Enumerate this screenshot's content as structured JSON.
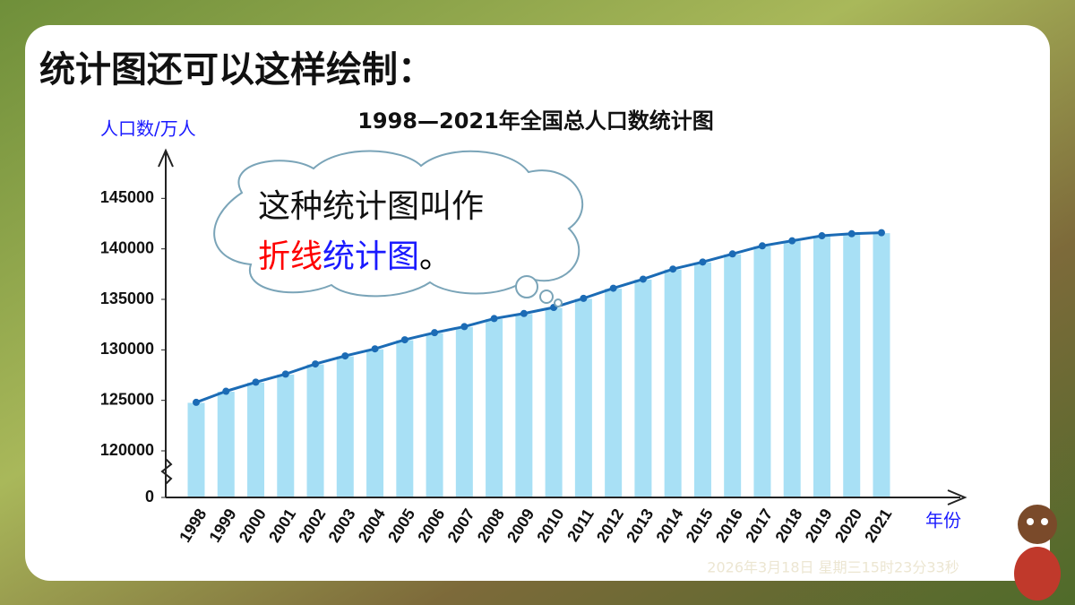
{
  "slide": {
    "heading": "统计图还可以这样绘制：",
    "callout": {
      "line1": "这种统计图叫作",
      "line2": [
        {
          "text": "折线",
          "color": "#ff0000"
        },
        {
          "text": "统计图",
          "color": "#1a1aff"
        },
        {
          "text": "。",
          "color": "#000000"
        }
      ]
    },
    "timestamp": "2026年3月18日 星期三15时23分33秒"
  },
  "chart_data": {
    "type": "bar",
    "line_overlay": true,
    "title": "1998—2021年全国总人口数统计图",
    "y_label": "人口数/万人",
    "x_label": "年份",
    "categories": [
      "1998",
      "1999",
      "2000",
      "2001",
      "2002",
      "2003",
      "2004",
      "2005",
      "2006",
      "2007",
      "2008",
      "2009",
      "2010",
      "2011",
      "2012",
      "2013",
      "2014",
      "2015",
      "2016",
      "2017",
      "2018",
      "2019",
      "2020",
      "2021"
    ],
    "values": [
      124800,
      125900,
      126800,
      127600,
      128600,
      129400,
      130100,
      131000,
      131700,
      132300,
      133100,
      133600,
      134200,
      135100,
      136100,
      137000,
      138000,
      138700,
      139500,
      140300,
      140800,
      141300,
      141500,
      141600
    ],
    "color": "#a8e0f5",
    "line_color": "#1b6bb5",
    "ylim": [
      0,
      150000
    ],
    "yticks": [
      0,
      120000,
      125000,
      130000,
      135000,
      140000,
      145000
    ],
    "axis_break": true,
    "grid": false
  }
}
